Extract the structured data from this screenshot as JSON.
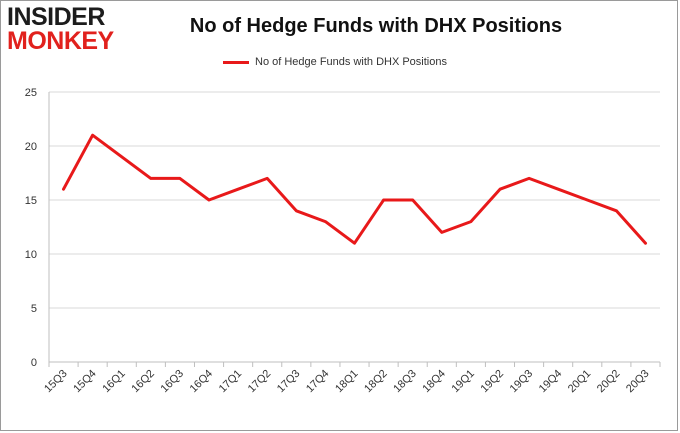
{
  "logo": {
    "line1": "INSIDER",
    "line2": "MONKEY"
  },
  "colors": {
    "series": "#e8191a",
    "grid": "#d9d9d9",
    "axis": "#bfbfbf",
    "text": "#333333",
    "logo_dark": "#1c1c1c",
    "logo_red": "#e1211d"
  },
  "chart_data": {
    "type": "line",
    "title": "No of Hedge Funds with DHX Positions",
    "xlabel": "",
    "ylabel": "",
    "legend_position": "top-center",
    "grid": "horizontal",
    "categories": [
      "15Q3",
      "15Q4",
      "16Q1",
      "16Q2",
      "16Q3",
      "16Q4",
      "17Q1",
      "17Q2",
      "17Q3",
      "17Q4",
      "18Q1",
      "18Q2",
      "18Q3",
      "18Q4",
      "19Q1",
      "19Q2",
      "19Q3",
      "19Q4",
      "20Q1",
      "20Q2",
      "20Q3"
    ],
    "series": [
      {
        "name": "No of Hedge Funds with DHX Positions",
        "values": [
          16,
          21,
          19,
          17,
          17,
          15,
          16,
          17,
          14,
          13,
          11,
          15,
          15,
          12,
          13,
          16,
          17,
          16,
          15,
          14,
          11
        ]
      }
    ],
    "ylim": [
      0,
      25
    ],
    "yticks": [
      0,
      5,
      10,
      15,
      20,
      25
    ]
  }
}
